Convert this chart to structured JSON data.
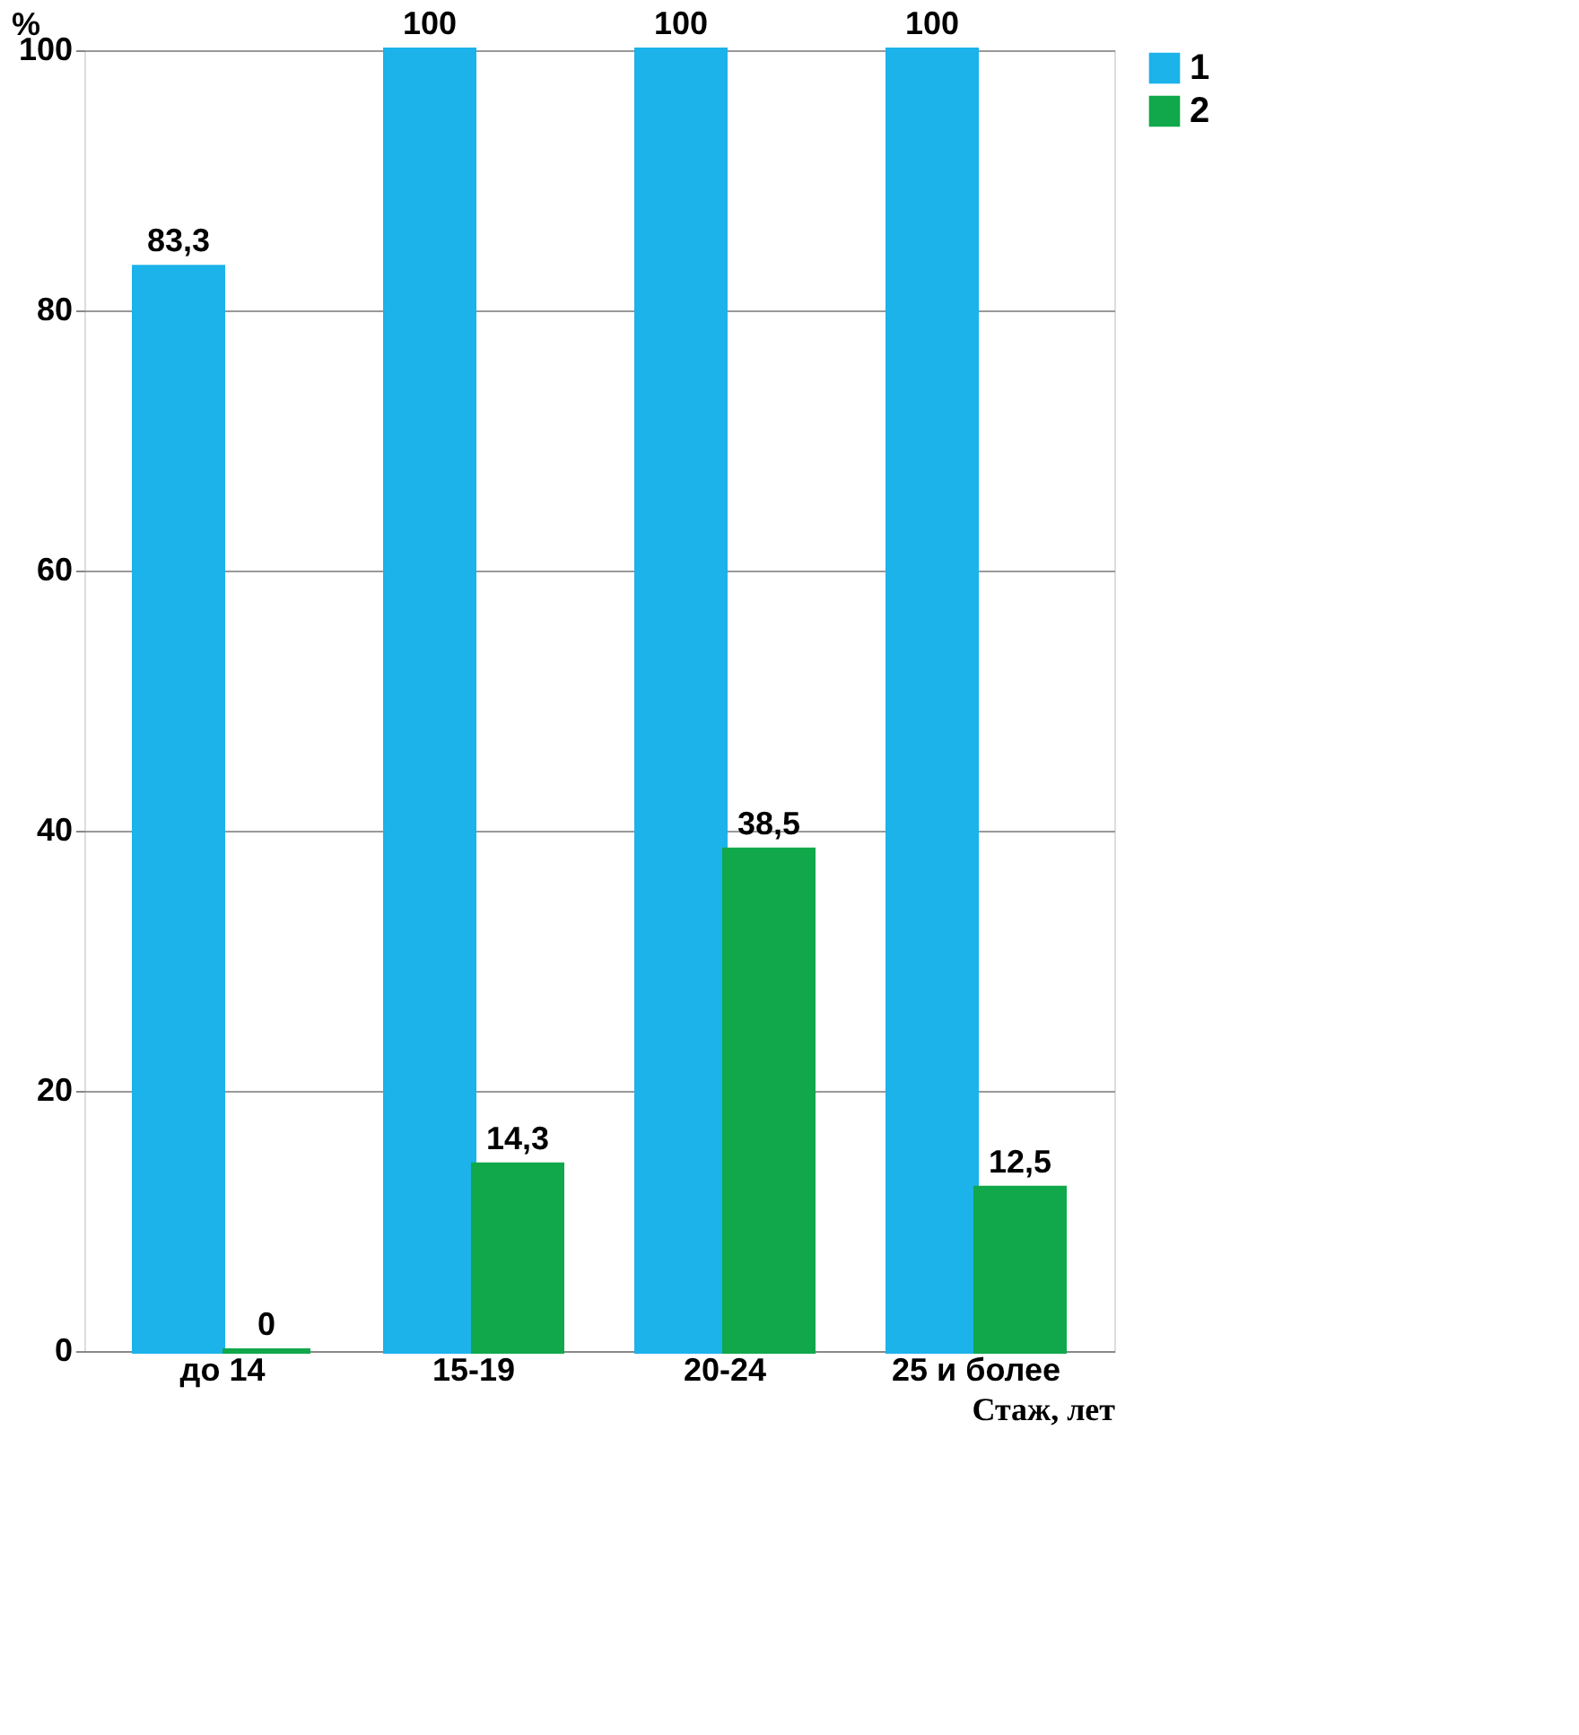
{
  "chart_data": {
    "type": "bar",
    "categories": [
      "до 14",
      "15-19",
      "20-24",
      "25 и более"
    ],
    "series": [
      {
        "name": "1",
        "color": "#1cb2ea",
        "values": [
          83.3,
          100,
          100,
          100
        ],
        "value_labels": [
          "83,3",
          "100",
          "100",
          "100"
        ]
      },
      {
        "name": "2",
        "color": "#10a84a",
        "values": [
          0,
          14.3,
          38.5,
          12.5
        ],
        "value_labels": [
          "0",
          "14,3",
          "38,5",
          "12,5"
        ]
      }
    ],
    "ylabel": "%",
    "xlabel": "Стаж, лет",
    "ylim": [
      0,
      100
    ],
    "yticks": [
      0,
      20,
      40,
      60,
      80,
      100
    ],
    "grid": "y",
    "legend": "right"
  }
}
